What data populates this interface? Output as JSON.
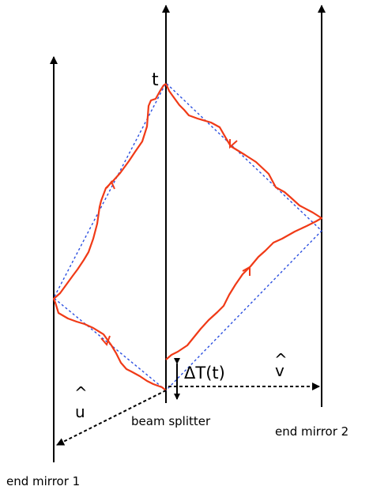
{
  "labels": {
    "t": "t",
    "delta_t": "ΔT(t)",
    "v_hat_caret": "^",
    "v_hat_letter": "v",
    "u_hat_caret": "^",
    "u_hat_letter": "u",
    "beam_splitter": "beam splitter",
    "end_mirror_1": "end mirror 1",
    "end_mirror_2": "end mirror 2"
  },
  "colors": {
    "worldline": "#000000",
    "light_path": "#f03a17",
    "null_path": "#2b4fe0",
    "basis_arrow": "#000000"
  }
}
